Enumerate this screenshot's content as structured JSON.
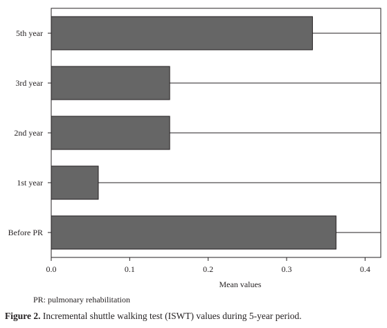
{
  "chart_data": {
    "type": "bar",
    "orientation": "horizontal",
    "categories": [
      "Before PR",
      "1st year",
      "2nd year",
      "3rd year",
      "5th year"
    ],
    "values": [
      0.363,
      0.06,
      0.151,
      0.151,
      0.333
    ],
    "xlabel": "Mean values",
    "ylabel": "",
    "xlim": [
      0,
      0.42
    ],
    "xticks": [
      "0.0",
      "0.1",
      "0.2",
      "0.3",
      "0.4"
    ],
    "grid": true,
    "bar_color": "#666666"
  },
  "note": "PR: pulmonary rehabilitation",
  "caption": {
    "label": "Figure 2.",
    "text": " Incremental shuttle walking test (ISWT) values during 5-year period."
  }
}
